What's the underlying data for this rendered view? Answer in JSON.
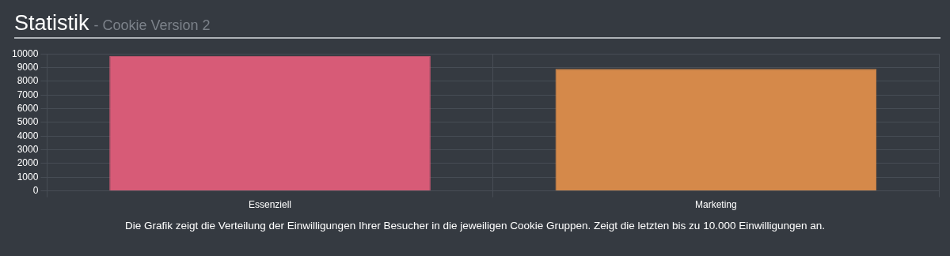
{
  "chart_data": {
    "type": "bar",
    "title": "Statistik",
    "subtitle": "- Cookie Version 2",
    "categories": [
      "Essenziell",
      "Marketing"
    ],
    "values": [
      9850,
      8900
    ],
    "colors": [
      "#d75b77",
      "#d5894a"
    ],
    "ylim": [
      0,
      10000
    ],
    "yticks": [
      0,
      1000,
      2000,
      3000,
      4000,
      5000,
      6000,
      7000,
      8000,
      9000,
      10000
    ],
    "grid": true,
    "legend": false,
    "annotations": [
      "Die Grafik zeigt die Verteilung der Einwilligungen Ihrer Besucher in die jeweiligen Cookie Gruppen. Zeigt die letzten bis zu 10.000 Einwilligungen an."
    ]
  }
}
